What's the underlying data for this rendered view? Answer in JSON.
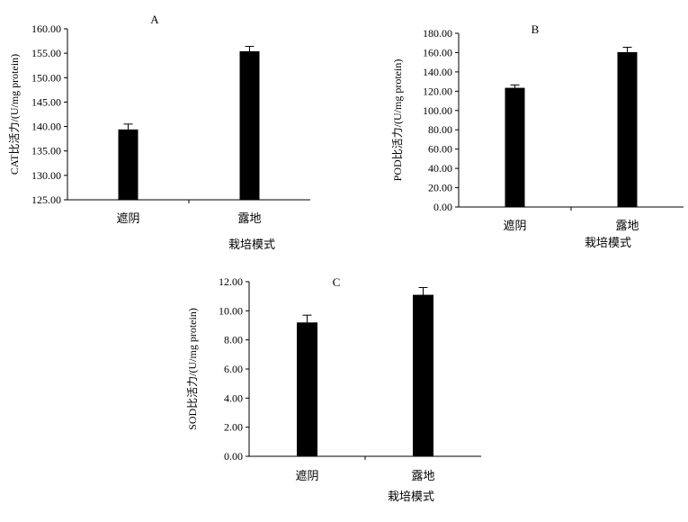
{
  "chart_data": [
    {
      "type": "bar",
      "panel_label": "A",
      "categories": [
        "遮阴",
        "露地"
      ],
      "values": [
        139.4,
        155.4
      ],
      "errors": [
        1.1,
        1.0
      ],
      "xlabel": "栽培模式",
      "ylabel": "CAT比活力/(U/mg protein)",
      "ylim": [
        125,
        160
      ],
      "yticks": [
        "125.00",
        "130.00",
        "135.00",
        "140.00",
        "145.00",
        "150.00",
        "155.00",
        "160.00"
      ],
      "tick_values": [
        125,
        130,
        135,
        140,
        145,
        150,
        155,
        160
      ],
      "grid": false,
      "bar_color": "#000000"
    },
    {
      "type": "bar",
      "panel_label": "B",
      "categories": [
        "遮阴",
        "露地"
      ],
      "values": [
        123.5,
        160.5
      ],
      "errors": [
        3.0,
        5.0
      ],
      "xlabel": "栽培模式",
      "ylabel": "POD比活力/(U/mg protein)",
      "ylim": [
        0,
        180
      ],
      "yticks": [
        "0.00",
        "20.00",
        "40.00",
        "60.00",
        "80.00",
        "100.00",
        "120.00",
        "140.00",
        "160.00",
        "180.00"
      ],
      "tick_values": [
        0,
        20,
        40,
        60,
        80,
        100,
        120,
        140,
        160,
        180
      ],
      "grid": false,
      "bar_color": "#000000"
    },
    {
      "type": "bar",
      "panel_label": "C",
      "categories": [
        "遮阴",
        "露地"
      ],
      "values": [
        9.2,
        11.1
      ],
      "errors": [
        0.5,
        0.5
      ],
      "xlabel": "栽培模式",
      "ylabel": "SOD比活力/(U/mg protein)",
      "ylim": [
        0,
        12
      ],
      "yticks": [
        "0.00",
        "2.00",
        "4.00",
        "6.00",
        "8.00",
        "10.00",
        "12.00"
      ],
      "tick_values": [
        0,
        2,
        4,
        6,
        8,
        10,
        12
      ],
      "grid": false,
      "bar_color": "#000000"
    }
  ]
}
